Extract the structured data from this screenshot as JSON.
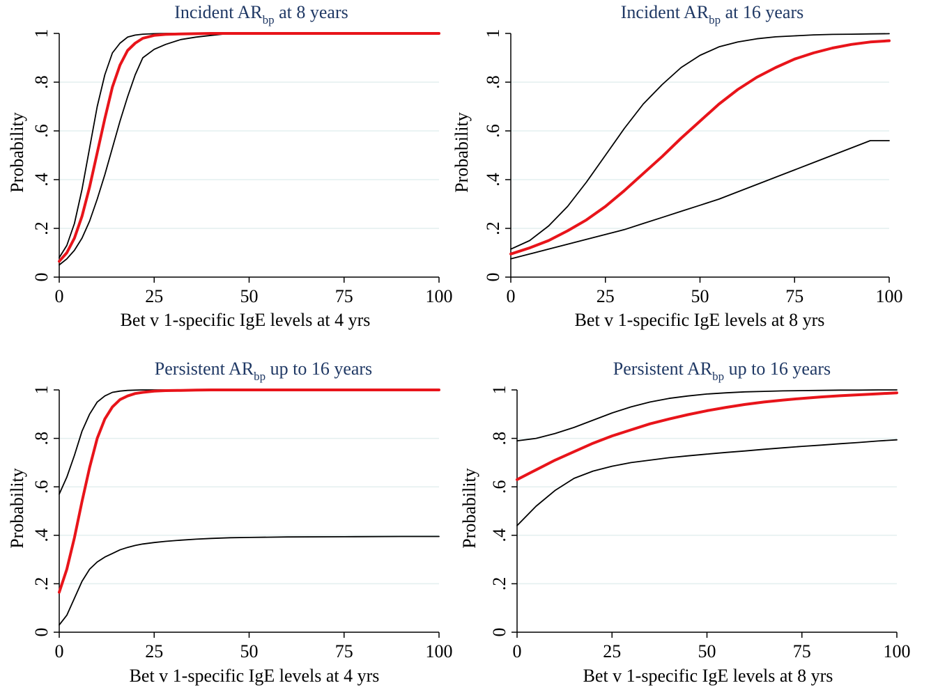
{
  "chart_data": [
    {
      "type": "line",
      "title": {
        "prefix": "Incident AR",
        "sub": "bp",
        "suffix": " at 8 years"
      },
      "xlabel": "Bet v 1-specific IgE levels at 4 yrs",
      "ylabel": "Probability",
      "xlim": [
        0,
        100
      ],
      "ylim": [
        0,
        1
      ],
      "xticks": [
        "0",
        "25",
        "50",
        "75",
        "100"
      ],
      "yticks": [
        "0",
        ".2",
        ".4",
        ".6",
        ".8",
        "1"
      ],
      "grid": true,
      "colors": {
        "estimate": "#e8141a",
        "ci": "#000000"
      },
      "x": [
        0,
        2,
        4,
        6,
        8,
        10,
        12,
        14,
        16,
        18,
        20,
        22,
        25,
        28,
        32,
        36,
        40,
        45,
        50,
        60,
        75,
        90,
        100
      ],
      "series": [
        {
          "role": "upper",
          "values": [
            0.08,
            0.13,
            0.22,
            0.36,
            0.53,
            0.7,
            0.83,
            0.92,
            0.96,
            0.985,
            0.993,
            0.997,
            0.999,
            1.0,
            1.0,
            1.0,
            1.0,
            1.0,
            1.0,
            1.0,
            1.0,
            1.0,
            1.0
          ]
        },
        {
          "role": "estimate",
          "values": [
            0.065,
            0.1,
            0.16,
            0.25,
            0.37,
            0.51,
            0.65,
            0.78,
            0.87,
            0.93,
            0.96,
            0.98,
            0.992,
            0.996,
            0.998,
            0.999,
            1.0,
            1.0,
            1.0,
            1.0,
            1.0,
            1.0,
            1.0
          ]
        },
        {
          "role": "lower",
          "values": [
            0.05,
            0.075,
            0.11,
            0.16,
            0.23,
            0.32,
            0.42,
            0.53,
            0.64,
            0.74,
            0.83,
            0.9,
            0.935,
            0.955,
            0.975,
            0.985,
            0.992,
            1.0,
            1.0,
            1.0,
            1.0,
            1.0,
            1.0
          ]
        }
      ]
    },
    {
      "type": "line",
      "title": {
        "prefix": "Incident AR",
        "sub": "bp",
        "suffix": " at 16 years"
      },
      "xlabel": "Bet v 1-specific IgE levels at 8 yrs",
      "ylabel": "Probability",
      "xlim": [
        0,
        100
      ],
      "ylim": [
        0,
        1
      ],
      "xticks": [
        "0",
        "25",
        "50",
        "75",
        "100"
      ],
      "yticks": [
        "0",
        ".2",
        ".4",
        ".6",
        ".8",
        "1"
      ],
      "grid": true,
      "colors": {
        "estimate": "#e8141a",
        "ci": "#000000"
      },
      "x": [
        0,
        5,
        10,
        15,
        20,
        25,
        30,
        35,
        40,
        45,
        50,
        55,
        60,
        65,
        70,
        75,
        80,
        85,
        90,
        95,
        100
      ],
      "series": [
        {
          "role": "upper",
          "values": [
            0.115,
            0.15,
            0.21,
            0.29,
            0.39,
            0.5,
            0.61,
            0.71,
            0.79,
            0.86,
            0.91,
            0.945,
            0.965,
            0.978,
            0.986,
            0.99,
            0.994,
            0.996,
            0.997,
            0.998,
            0.999
          ]
        },
        {
          "role": "estimate",
          "values": [
            0.095,
            0.12,
            0.15,
            0.19,
            0.235,
            0.29,
            0.355,
            0.425,
            0.495,
            0.57,
            0.64,
            0.71,
            0.77,
            0.82,
            0.86,
            0.895,
            0.92,
            0.94,
            0.955,
            0.965,
            0.97
          ]
        },
        {
          "role": "lower",
          "values": [
            0.075,
            0.095,
            0.115,
            0.135,
            0.155,
            0.175,
            0.195,
            0.22,
            0.245,
            0.27,
            0.295,
            0.32,
            0.35,
            0.38,
            0.41,
            0.44,
            0.47,
            0.5,
            0.53,
            0.56,
            0.56
          ]
        }
      ]
    },
    {
      "type": "line",
      "title": {
        "prefix": "Persistent AR",
        "sub": "bp",
        "suffix": " up to 16 years"
      },
      "xlabel": "Bet v 1-specific IgE levels at 4 yrs",
      "ylabel": "Probability",
      "xlim": [
        0,
        100
      ],
      "ylim": [
        0,
        1
      ],
      "xticks": [
        "0",
        "25",
        "50",
        "75",
        "100"
      ],
      "yticks": [
        "0",
        ".2",
        ".4",
        ".6",
        ".8",
        "1"
      ],
      "grid": true,
      "colors": {
        "estimate": "#e8141a",
        "ci": "#000000"
      },
      "x": [
        0,
        2,
        4,
        6,
        8,
        10,
        12,
        14,
        16,
        18,
        20,
        22,
        25,
        28,
        32,
        36,
        40,
        45,
        50,
        60,
        75,
        90,
        100
      ],
      "series": [
        {
          "role": "upper",
          "values": [
            0.57,
            0.64,
            0.73,
            0.83,
            0.9,
            0.95,
            0.975,
            0.99,
            0.995,
            0.998,
            0.999,
            1.0,
            1.0,
            1.0,
            1.0,
            1.0,
            1.0,
            1.0,
            1.0,
            1.0,
            1.0,
            1.0,
            1.0
          ]
        },
        {
          "role": "estimate",
          "values": [
            0.165,
            0.26,
            0.39,
            0.54,
            0.68,
            0.8,
            0.88,
            0.93,
            0.96,
            0.975,
            0.985,
            0.99,
            0.995,
            0.997,
            0.998,
            0.999,
            1.0,
            1.0,
            1.0,
            1.0,
            1.0,
            1.0,
            1.0
          ]
        },
        {
          "role": "lower",
          "values": [
            0.03,
            0.07,
            0.14,
            0.21,
            0.26,
            0.29,
            0.31,
            0.325,
            0.34,
            0.35,
            0.358,
            0.364,
            0.37,
            0.375,
            0.38,
            0.384,
            0.387,
            0.39,
            0.391,
            0.393,
            0.394,
            0.395,
            0.395
          ]
        }
      ]
    },
    {
      "type": "line",
      "title": {
        "prefix": "Persistent AR",
        "sub": "bp",
        "suffix": " up to 16 years"
      },
      "xlabel": "Bet v 1-specific IgE levels at 8 yrs",
      "ylabel": "Probability",
      "xlim": [
        0,
        100
      ],
      "ylim": [
        0,
        1
      ],
      "xticks": [
        "0",
        "25",
        "50",
        "75",
        "100"
      ],
      "yticks": [
        "0",
        ".2",
        ".4",
        ".6",
        ".8",
        "1"
      ],
      "grid": true,
      "colors": {
        "estimate": "#e8141a",
        "ci": "#000000"
      },
      "x": [
        0,
        5,
        10,
        15,
        20,
        25,
        30,
        35,
        40,
        45,
        50,
        55,
        60,
        65,
        70,
        75,
        80,
        85,
        90,
        95,
        100
      ],
      "series": [
        {
          "role": "upper",
          "values": [
            0.79,
            0.8,
            0.82,
            0.845,
            0.875,
            0.905,
            0.93,
            0.95,
            0.965,
            0.975,
            0.983,
            0.988,
            0.992,
            0.994,
            0.996,
            0.997,
            0.998,
            0.999,
            0.999,
            1.0,
            1.0
          ]
        },
        {
          "role": "estimate",
          "values": [
            0.63,
            0.67,
            0.71,
            0.745,
            0.78,
            0.81,
            0.835,
            0.86,
            0.88,
            0.898,
            0.914,
            0.928,
            0.94,
            0.95,
            0.958,
            0.965,
            0.971,
            0.976,
            0.98,
            0.984,
            0.988
          ]
        },
        {
          "role": "lower",
          "values": [
            0.44,
            0.52,
            0.585,
            0.635,
            0.665,
            0.685,
            0.7,
            0.71,
            0.72,
            0.728,
            0.735,
            0.742,
            0.748,
            0.755,
            0.761,
            0.767,
            0.772,
            0.778,
            0.783,
            0.789,
            0.794
          ]
        }
      ]
    }
  ]
}
